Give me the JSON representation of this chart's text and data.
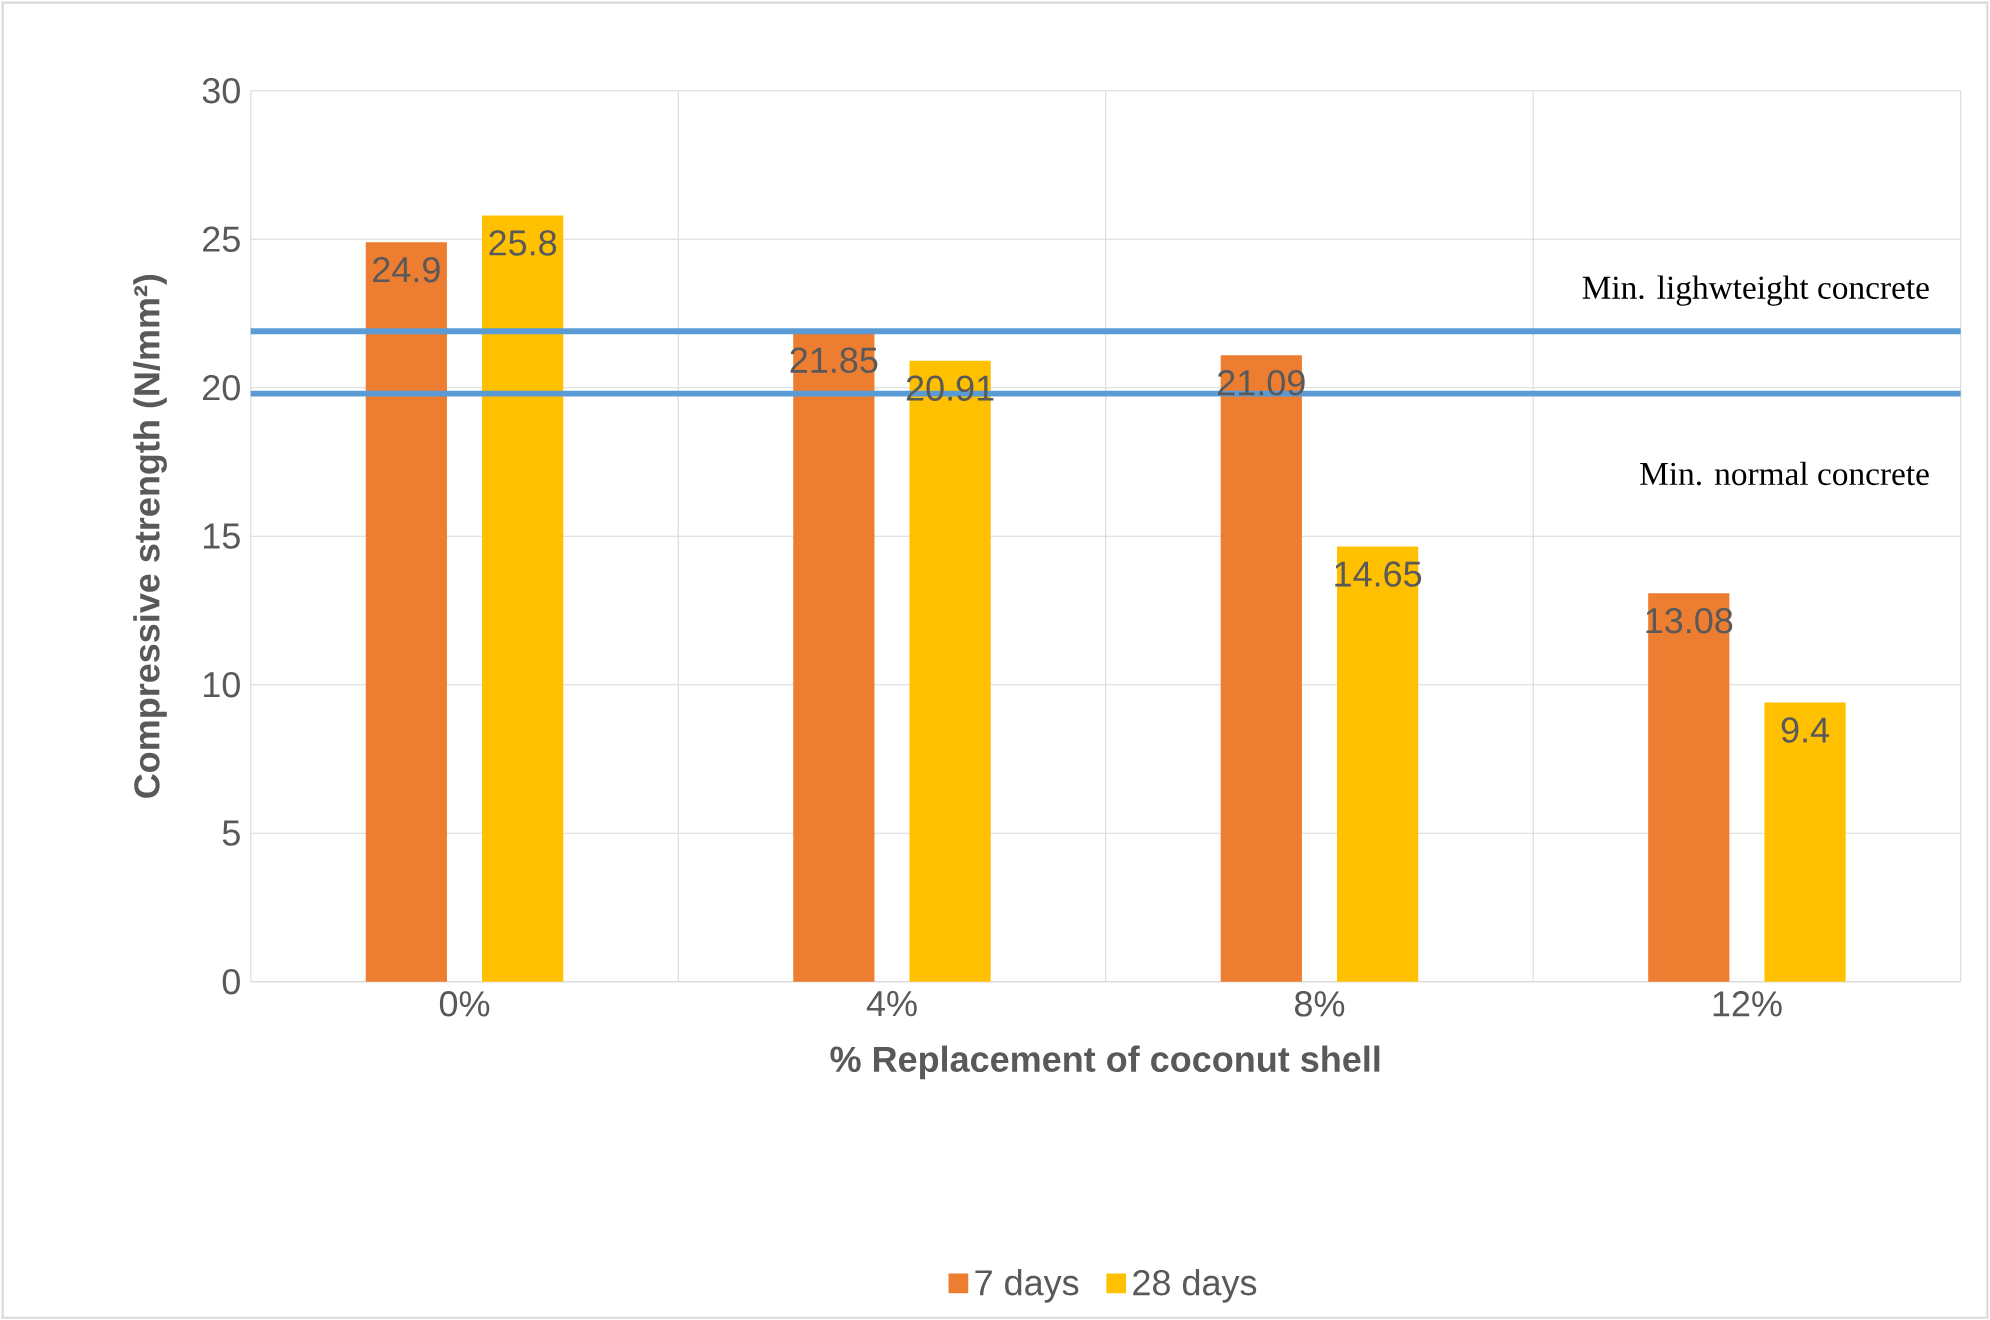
{
  "chart_data": {
    "type": "bar",
    "xlabel": "% Replacement of coconut shell",
    "ylabel": "Compressive strength (N/mm²)",
    "categories": [
      "0%",
      "4%",
      "8%",
      "12%"
    ],
    "series": [
      {
        "name": "7 days",
        "color": "#ed7d31",
        "values": [
          24.9,
          21.85,
          21.09,
          13.08
        ]
      },
      {
        "name": "28 days",
        "color": "#ffc000",
        "values": [
          25.8,
          20.91,
          14.65,
          9.4
        ]
      }
    ],
    "ylim": [
      0,
      30
    ],
    "yticks": [
      0,
      5,
      10,
      15,
      20,
      25,
      30
    ],
    "ref_lines": [
      {
        "axis": "y",
        "value": 21.9,
        "label": "Min. lighwteight concrete",
        "color": "#5b9bd5"
      },
      {
        "axis": "y",
        "value": 19.8,
        "label": "Min. normal concrete",
        "color": "#5b9bd5"
      }
    ],
    "data_labels": true,
    "grid": true,
    "legend": "bottom"
  }
}
